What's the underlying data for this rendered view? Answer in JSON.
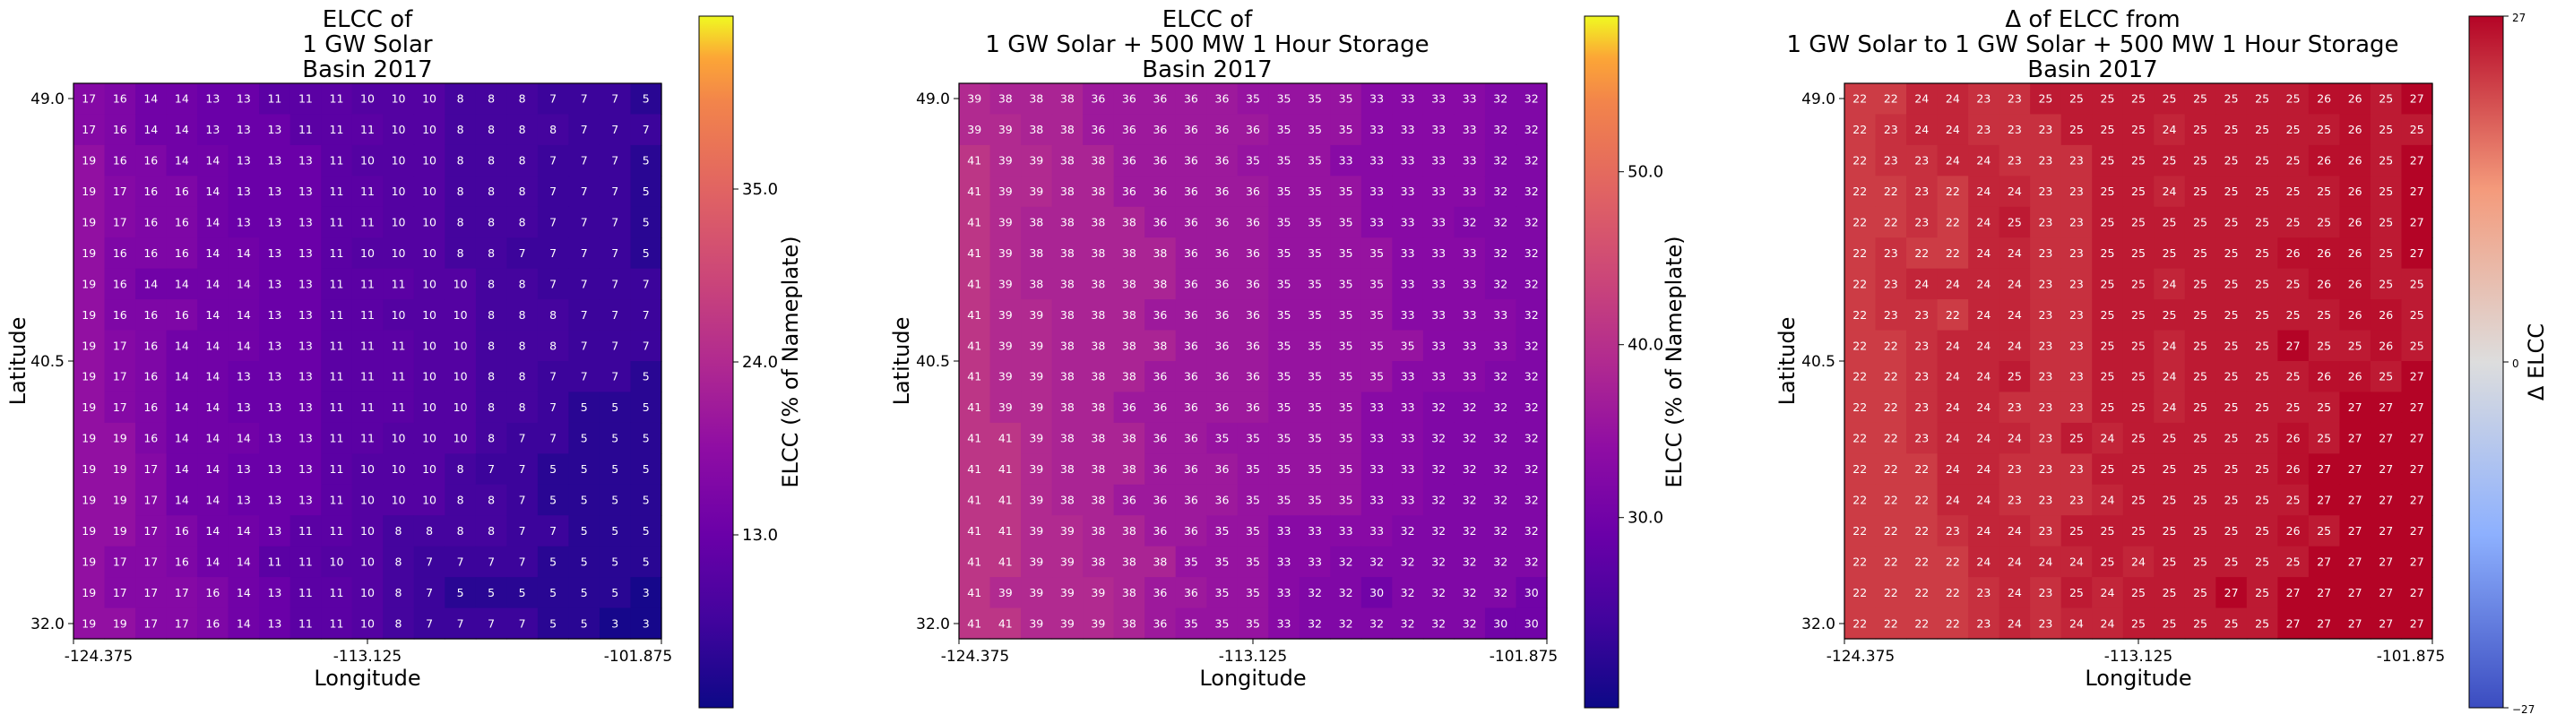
{
  "charts": [
    {
      "id": "solar",
      "title": [
        "ELCC of",
        "1 GW Solar",
        "Basin 2017"
      ],
      "xlabel": "Longitude",
      "ylabel": "Latitude",
      "xticks": [
        "-124.375",
        "-113.125",
        "-101.875"
      ],
      "yticks": [
        "49.0",
        "40.5",
        "32.0"
      ],
      "colorbar": {
        "label": "ELCC (% of Nameplate)",
        "ticks": [
          "35.0",
          "24.0",
          "13.0"
        ],
        "tick_values": [
          35,
          24,
          13
        ],
        "vmin": 2,
        "vmax": 46,
        "colormap": "plasma"
      }
    },
    {
      "id": "solar_storage",
      "title": [
        "ELCC of",
        "1 GW Solar + 500 MW 1 Hour Storage",
        "Basin 2017"
      ],
      "xlabel": "Longitude",
      "ylabel": "Latitude",
      "xticks": [
        "-124.375",
        "-113.125",
        "-101.875"
      ],
      "yticks": [
        "49.0",
        "40.5",
        "32.0"
      ],
      "colorbar": {
        "label": "ELCC (% of Nameplate)",
        "ticks": [
          "50.0",
          "40.0",
          "30.0"
        ],
        "tick_values": [
          50,
          40,
          30
        ],
        "vmin": 19,
        "vmax": 59,
        "colormap": "plasma"
      }
    },
    {
      "id": "delta",
      "title": [
        "Δ of ELCC from",
        "1 GW Solar to 1 GW Solar + 500 MW 1 Hour Storage",
        "Basin 2017"
      ],
      "xlabel": "Longitude",
      "ylabel": "Latitude",
      "xticks": [
        "-124.375",
        "-113.125",
        "-101.875"
      ],
      "yticks": [
        "49.0",
        "40.5",
        "32.0"
      ],
      "colorbar": {
        "label": "Δ ELCC",
        "ticks": [
          "27",
          "0",
          "−27"
        ],
        "tick_values": [
          27,
          0,
          -27
        ],
        "vmin": -27,
        "vmax": 27,
        "colormap": "coolwarm"
      }
    }
  ],
  "chart_data": [
    {
      "type": "heatmap",
      "title": "ELCC of 1 GW Solar Basin 2017",
      "xlabel": "Longitude",
      "ylabel": "Latitude",
      "xlim": [
        -124.375,
        -101.875
      ],
      "ylim": [
        32.0,
        49.0
      ],
      "colorbar_label": "ELCC (% of Nameplate)",
      "values": [
        [
          17,
          16,
          14,
          14,
          13,
          13,
          11,
          11,
          11,
          10,
          10,
          10,
          8,
          8,
          8,
          7,
          7,
          7,
          5
        ],
        [
          17,
          16,
          14,
          14,
          13,
          13,
          13,
          11,
          11,
          11,
          10,
          10,
          8,
          8,
          8,
          8,
          7,
          7,
          7
        ],
        [
          19,
          16,
          16,
          14,
          14,
          13,
          13,
          13,
          11,
          10,
          10,
          10,
          8,
          8,
          8,
          7,
          7,
          7,
          5
        ],
        [
          19,
          17,
          16,
          16,
          14,
          13,
          13,
          13,
          11,
          11,
          10,
          10,
          8,
          8,
          8,
          7,
          7,
          7,
          5
        ],
        [
          19,
          17,
          16,
          16,
          14,
          13,
          13,
          13,
          11,
          11,
          10,
          10,
          8,
          8,
          8,
          7,
          7,
          7,
          5
        ],
        [
          19,
          16,
          16,
          16,
          14,
          14,
          13,
          13,
          11,
          10,
          10,
          10,
          8,
          8,
          7,
          7,
          7,
          7,
          5
        ],
        [
          19,
          16,
          14,
          14,
          14,
          14,
          13,
          13,
          11,
          11,
          11,
          10,
          10,
          8,
          8,
          7,
          7,
          7,
          7
        ],
        [
          19,
          16,
          16,
          16,
          14,
          14,
          13,
          13,
          11,
          11,
          10,
          10,
          10,
          8,
          8,
          8,
          7,
          7,
          7
        ],
        [
          19,
          17,
          16,
          14,
          14,
          14,
          13,
          13,
          11,
          11,
          11,
          10,
          10,
          8,
          8,
          8,
          7,
          7,
          7
        ],
        [
          19,
          17,
          16,
          14,
          14,
          13,
          13,
          13,
          11,
          11,
          11,
          10,
          10,
          8,
          8,
          7,
          7,
          7,
          5
        ],
        [
          19,
          17,
          16,
          14,
          14,
          13,
          13,
          13,
          11,
          11,
          11,
          10,
          10,
          8,
          8,
          7,
          5,
          5,
          5
        ],
        [
          19,
          19,
          16,
          14,
          14,
          14,
          13,
          13,
          11,
          11,
          10,
          10,
          10,
          8,
          7,
          7,
          5,
          5,
          5
        ],
        [
          19,
          19,
          17,
          14,
          14,
          13,
          13,
          13,
          11,
          10,
          10,
          10,
          8,
          7,
          7,
          5,
          5,
          5,
          5
        ],
        [
          19,
          19,
          17,
          14,
          14,
          13,
          13,
          13,
          11,
          10,
          10,
          10,
          8,
          8,
          7,
          5,
          5,
          5,
          5
        ],
        [
          19,
          19,
          17,
          16,
          14,
          14,
          13,
          11,
          11,
          10,
          8,
          8,
          8,
          8,
          7,
          7,
          5,
          5,
          5
        ],
        [
          19,
          17,
          17,
          16,
          14,
          14,
          11,
          11,
          10,
          10,
          8,
          7,
          7,
          7,
          7,
          5,
          5,
          5,
          5
        ],
        [
          19,
          17,
          17,
          17,
          16,
          14,
          13,
          11,
          11,
          10,
          8,
          7,
          5,
          5,
          5,
          5,
          5,
          5,
          3
        ],
        [
          19,
          19,
          17,
          17,
          16,
          14,
          13,
          11,
          11,
          10,
          8,
          7,
          7,
          7,
          7,
          5,
          5,
          3,
          3
        ]
      ]
    },
    {
      "type": "heatmap",
      "title": "ELCC of 1 GW Solar + 500 MW 1 Hour Storage Basin 2017",
      "xlabel": "Longitude",
      "ylabel": "Latitude",
      "xlim": [
        -124.375,
        -101.875
      ],
      "ylim": [
        32.0,
        49.0
      ],
      "colorbar_label": "ELCC (% of Nameplate)",
      "values": [
        [
          39,
          38,
          38,
          38,
          36,
          36,
          36,
          36,
          36,
          35,
          35,
          35,
          35,
          33,
          33,
          33,
          33,
          32,
          32
        ],
        [
          39,
          39,
          38,
          38,
          36,
          36,
          36,
          36,
          36,
          36,
          35,
          35,
          35,
          33,
          33,
          33,
          33,
          32,
          32
        ],
        [
          41,
          39,
          39,
          38,
          38,
          36,
          36,
          36,
          36,
          35,
          35,
          35,
          33,
          33,
          33,
          33,
          33,
          32,
          32
        ],
        [
          41,
          39,
          39,
          38,
          38,
          36,
          36,
          36,
          36,
          36,
          35,
          35,
          35,
          33,
          33,
          33,
          33,
          32,
          32
        ],
        [
          41,
          39,
          38,
          38,
          38,
          38,
          36,
          36,
          36,
          36,
          35,
          35,
          35,
          33,
          33,
          33,
          32,
          32,
          32
        ],
        [
          41,
          39,
          38,
          38,
          38,
          38,
          38,
          36,
          36,
          36,
          35,
          35,
          35,
          35,
          33,
          33,
          33,
          32,
          32
        ],
        [
          41,
          39,
          38,
          38,
          38,
          38,
          38,
          36,
          36,
          36,
          35,
          35,
          35,
          35,
          33,
          33,
          33,
          32,
          32
        ],
        [
          41,
          39,
          39,
          38,
          38,
          38,
          36,
          36,
          36,
          36,
          35,
          35,
          35,
          35,
          33,
          33,
          33,
          33,
          32
        ],
        [
          41,
          39,
          39,
          38,
          38,
          38,
          38,
          36,
          36,
          36,
          35,
          35,
          35,
          35,
          35,
          33,
          33,
          33,
          32
        ],
        [
          41,
          39,
          39,
          38,
          38,
          38,
          36,
          36,
          36,
          36,
          35,
          35,
          35,
          35,
          33,
          33,
          33,
          32,
          32
        ],
        [
          41,
          39,
          39,
          38,
          38,
          36,
          36,
          36,
          36,
          36,
          35,
          35,
          35,
          33,
          33,
          32,
          32,
          32,
          32
        ],
        [
          41,
          41,
          39,
          38,
          38,
          38,
          36,
          36,
          35,
          35,
          35,
          35,
          35,
          33,
          33,
          32,
          32,
          32,
          32
        ],
        [
          41,
          41,
          39,
          38,
          38,
          38,
          36,
          36,
          36,
          35,
          35,
          35,
          35,
          33,
          33,
          32,
          32,
          32,
          32
        ],
        [
          41,
          41,
          39,
          38,
          38,
          36,
          36,
          36,
          36,
          35,
          35,
          35,
          35,
          33,
          33,
          32,
          32,
          32,
          32
        ],
        [
          41,
          41,
          39,
          39,
          38,
          38,
          36,
          36,
          35,
          35,
          33,
          33,
          33,
          33,
          32,
          32,
          32,
          32,
          32
        ],
        [
          41,
          41,
          39,
          39,
          38,
          38,
          38,
          35,
          35,
          35,
          33,
          33,
          32,
          32,
          32,
          32,
          32,
          32,
          32
        ],
        [
          41,
          39,
          39,
          39,
          39,
          38,
          36,
          36,
          35,
          35,
          33,
          32,
          32,
          30,
          32,
          32,
          32,
          32,
          30
        ],
        [
          41,
          41,
          39,
          39,
          39,
          38,
          36,
          35,
          35,
          35,
          33,
          32,
          32,
          32,
          32,
          32,
          32,
          30,
          30
        ]
      ]
    },
    {
      "type": "heatmap",
      "title": "Δ of ELCC from 1 GW Solar to 1 GW Solar + 500 MW 1 Hour Storage Basin 2017",
      "xlabel": "Longitude",
      "ylabel": "Latitude",
      "xlim": [
        -124.375,
        -101.875
      ],
      "ylim": [
        32.0,
        49.0
      ],
      "colorbar_label": "Δ ELCC",
      "values": [
        [
          22,
          22,
          24,
          24,
          23,
          23,
          25,
          25,
          25,
          25,
          25,
          25,
          25,
          25,
          25,
          26,
          26,
          25,
          27
        ],
        [
          22,
          23,
          24,
          24,
          23,
          23,
          23,
          25,
          25,
          25,
          24,
          25,
          25,
          25,
          25,
          25,
          26,
          25,
          25
        ],
        [
          22,
          23,
          23,
          24,
          24,
          23,
          23,
          23,
          25,
          25,
          25,
          25,
          25,
          25,
          25,
          26,
          26,
          25,
          27
        ],
        [
          22,
          22,
          23,
          22,
          24,
          24,
          23,
          23,
          25,
          25,
          24,
          25,
          25,
          25,
          25,
          25,
          26,
          25,
          27
        ],
        [
          22,
          22,
          23,
          22,
          24,
          25,
          23,
          23,
          25,
          25,
          25,
          25,
          25,
          25,
          25,
          25,
          26,
          25,
          27
        ],
        [
          22,
          23,
          22,
          22,
          24,
          24,
          23,
          23,
          25,
          25,
          25,
          25,
          25,
          25,
          26,
          26,
          26,
          25,
          27
        ],
        [
          22,
          23,
          24,
          24,
          24,
          24,
          23,
          23,
          25,
          25,
          24,
          25,
          25,
          25,
          25,
          26,
          26,
          25,
          25
        ],
        [
          22,
          23,
          23,
          22,
          24,
          24,
          23,
          23,
          25,
          25,
          25,
          25,
          25,
          25,
          25,
          25,
          26,
          26,
          25
        ],
        [
          22,
          22,
          23,
          24,
          24,
          24,
          23,
          23,
          25,
          25,
          24,
          25,
          25,
          25,
          27,
          25,
          25,
          26,
          25
        ],
        [
          22,
          22,
          23,
          24,
          24,
          25,
          23,
          23,
          25,
          25,
          24,
          25,
          25,
          25,
          25,
          26,
          26,
          25,
          27
        ],
        [
          22,
          22,
          23,
          24,
          24,
          23,
          23,
          23,
          25,
          25,
          24,
          25,
          25,
          25,
          25,
          25,
          27,
          27,
          27
        ],
        [
          22,
          22,
          23,
          24,
          24,
          24,
          23,
          25,
          24,
          25,
          25,
          25,
          25,
          25,
          26,
          25,
          27,
          27,
          27
        ],
        [
          22,
          22,
          22,
          24,
          24,
          23,
          23,
          23,
          25,
          25,
          25,
          25,
          25,
          25,
          26,
          27,
          27,
          27,
          27
        ],
        [
          22,
          22,
          22,
          24,
          24,
          23,
          23,
          23,
          24,
          25,
          25,
          25,
          25,
          25,
          25,
          27,
          27,
          27,
          27
        ],
        [
          22,
          22,
          22,
          23,
          24,
          24,
          23,
          25,
          25,
          25,
          25,
          25,
          25,
          25,
          26,
          25,
          27,
          27,
          27
        ],
        [
          22,
          22,
          22,
          22,
          24,
          24,
          24,
          24,
          25,
          24,
          25,
          25,
          25,
          25,
          25,
          27,
          27,
          27,
          27
        ],
        [
          22,
          22,
          22,
          22,
          23,
          24,
          23,
          25,
          24,
          25,
          25,
          25,
          27,
          25,
          27,
          27,
          27,
          27,
          27
        ],
        [
          22,
          22,
          22,
          22,
          23,
          24,
          23,
          24,
          24,
          25,
          25,
          25,
          25,
          25,
          27,
          27,
          27,
          27,
          27
        ]
      ]
    }
  ]
}
